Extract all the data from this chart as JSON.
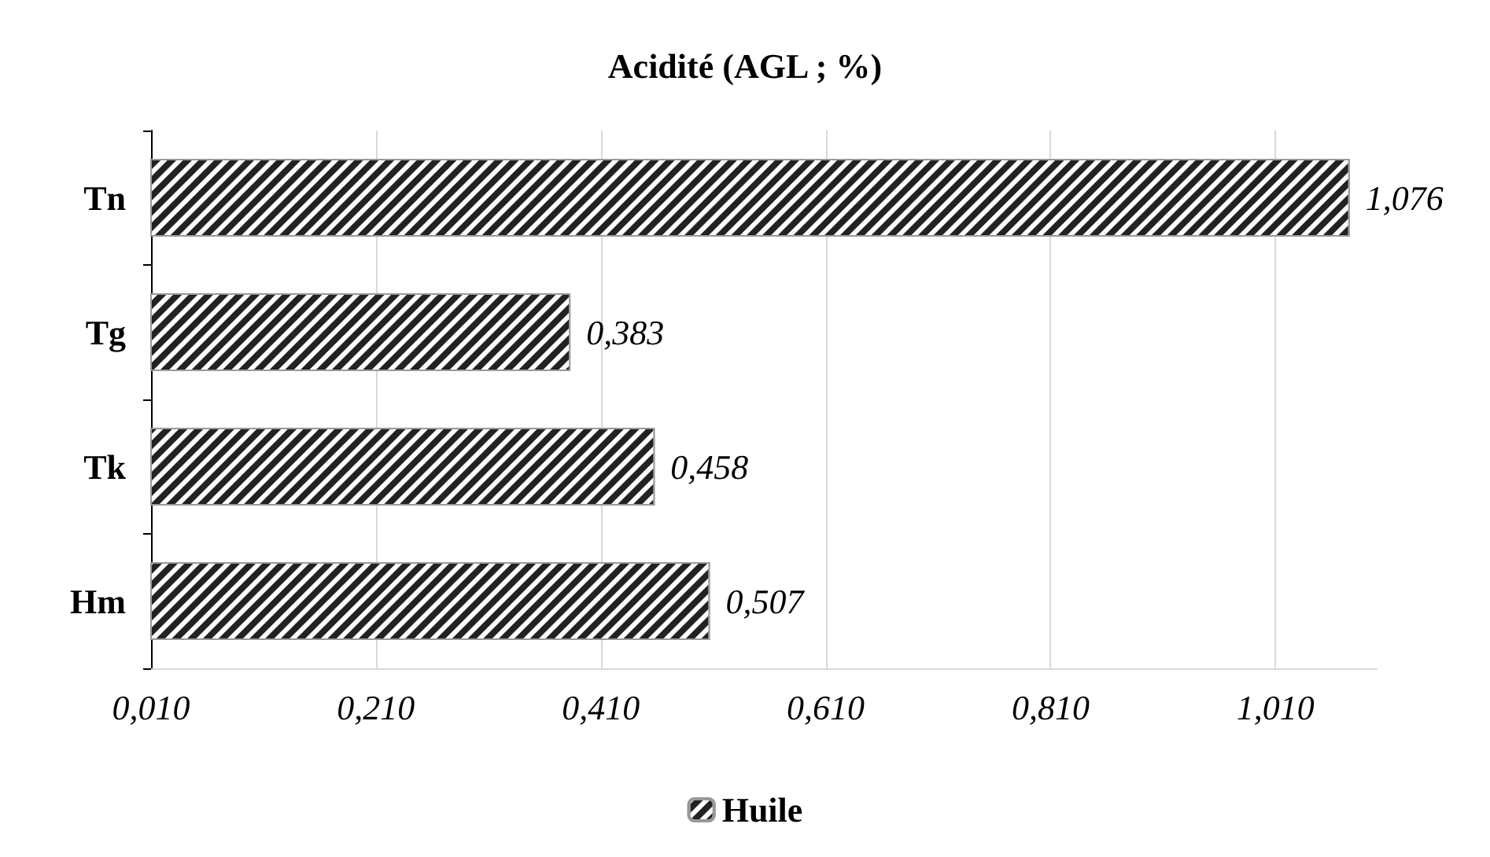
{
  "chart_data": {
    "type": "bar",
    "orientation": "horizontal",
    "title": "Acidité (AGL ; %)",
    "categories": [
      "Tn",
      "Tg",
      "Tk",
      "Hm"
    ],
    "series": [
      {
        "name": "Huile",
        "color": "#222222",
        "values": [
          1.076,
          0.383,
          0.458,
          0.507
        ],
        "value_labels": [
          "1,076",
          "0,383",
          "0,458",
          "0,507"
        ]
      }
    ],
    "xlim": [
      0.01,
      1.1
    ],
    "xticks": [
      {
        "value": 0.01,
        "label": "0,010"
      },
      {
        "value": 0.21,
        "label": "0,210"
      },
      {
        "value": 0.41,
        "label": "0,410"
      },
      {
        "value": 0.61,
        "label": "0,610"
      },
      {
        "value": 0.81,
        "label": "0,810"
      },
      {
        "value": 1.01,
        "label": "1,010"
      }
    ],
    "grid": "x",
    "legend": "bottom"
  }
}
